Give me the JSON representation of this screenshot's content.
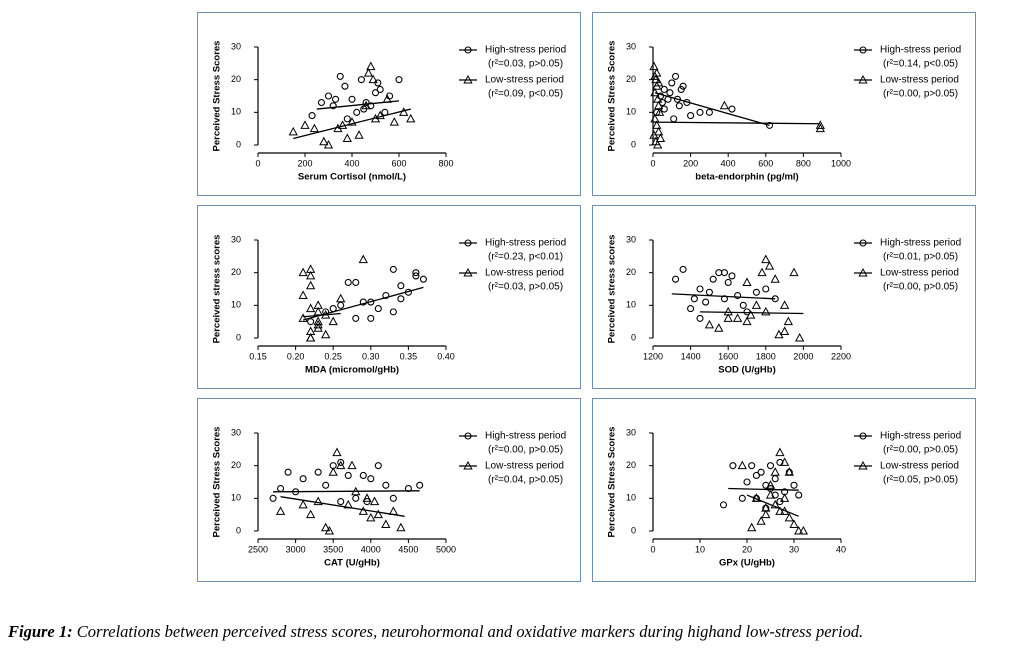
{
  "chart_data": [
    {
      "type": "scatter",
      "x_label": "Serum Cortisol (nmol/L)",
      "y_label": "Perceived Stress Scores",
      "xlim": [
        0,
        800
      ],
      "xticks": [
        0,
        200,
        400,
        600,
        800
      ],
      "ylim": [
        0,
        30
      ],
      "yticks": [
        0,
        10,
        20,
        30
      ],
      "series": [
        {
          "name": "High-stress period",
          "stat": "(r²=0.03, p>0.05)",
          "marker": "circle",
          "color": "#000000",
          "x": [
            230,
            270,
            300,
            320,
            350,
            370,
            400,
            420,
            440,
            460,
            480,
            500,
            520,
            540,
            560,
            600,
            380,
            450,
            330,
            510
          ],
          "values": [
            9,
            13,
            15,
            12,
            21,
            18,
            14,
            10,
            20,
            13,
            12,
            16,
            17,
            10,
            15,
            20,
            8,
            11,
            14,
            19
          ],
          "trend": {
            "x": [
              250,
              600
            ],
            "y": [
              11,
              13.5
            ]
          }
        },
        {
          "name": "Low-stress period",
          "stat": "(r²=0.09, p<0.05)",
          "marker": "triangle",
          "color": "#000000",
          "x": [
            150,
            200,
            240,
            280,
            300,
            340,
            360,
            380,
            400,
            430,
            460,
            480,
            490,
            500,
            520,
            550,
            580,
            620,
            650,
            470
          ],
          "values": [
            4,
            6,
            5,
            1,
            0,
            5,
            6,
            2,
            7,
            3,
            12,
            24,
            20,
            8,
            9,
            14,
            7,
            10,
            8,
            22
          ],
          "trend": {
            "x": [
              150,
              650
            ],
            "y": [
              2,
              11
            ]
          }
        }
      ]
    },
    {
      "type": "scatter",
      "x_label": "beta-endorphin (pg/ml)",
      "y_label": "Perceived Stress Scores",
      "xlim": [
        0,
        1000
      ],
      "xticks": [
        0,
        200,
        400,
        600,
        800,
        1000
      ],
      "ylim": [
        0,
        30
      ],
      "yticks": [
        0,
        10,
        20,
        30
      ],
      "series": [
        {
          "name": "High-stress period",
          "stat": "(r²=0.14, p<0.05)",
          "marker": "circle",
          "color": "#000000",
          "x": [
            20,
            40,
            60,
            80,
            100,
            120,
            140,
            160,
            180,
            60,
            90,
            110,
            130,
            200,
            250,
            300,
            420,
            620,
            50,
            150
          ],
          "values": [
            10,
            15,
            17,
            14,
            19,
            21,
            12,
            18,
            13,
            11,
            16,
            8,
            14,
            9,
            10,
            10,
            11,
            6,
            13,
            17
          ],
          "trend": {
            "x": [
              10,
              620
            ],
            "y": [
              16,
              6
            ]
          }
        },
        {
          "name": "Low-stress period",
          "stat": "(r²=0.00, p>0.05)",
          "marker": "triangle",
          "color": "#000000",
          "x": [
            5,
            10,
            15,
            20,
            25,
            30,
            10,
            20,
            30,
            40,
            15,
            25,
            5,
            35,
            380,
            890,
            890,
            10,
            20,
            30
          ],
          "values": [
            24,
            21,
            20,
            18,
            14,
            12,
            8,
            6,
            4,
            2,
            1,
            0,
            3,
            10,
            12,
            5,
            6,
            16,
            22,
            19
          ],
          "trend": {
            "x": [
              0,
              890
            ],
            "y": [
              7,
              6.5
            ]
          }
        }
      ]
    },
    {
      "type": "scatter",
      "x_label": "MDA (micromol/gHb)",
      "y_label": "Perceived stress scores",
      "xlim": [
        0.15,
        0.4
      ],
      "xticks": [
        0.15,
        {
          "value": 0.2,
          "label": "0.20"
        },
        0.25,
        {
          "value": 0.3,
          "label": "0.30"
        },
        0.35,
        {
          "value": 0.4,
          "label": "0.40"
        }
      ],
      "ylim": [
        0,
        30
      ],
      "yticks": [
        0,
        10,
        20,
        30
      ],
      "series": [
        {
          "name": "High-stress period",
          "stat": "(r²=0.23, p<0.01)",
          "marker": "circle",
          "color": "#000000",
          "x": [
            0.22,
            0.24,
            0.26,
            0.27,
            0.28,
            0.29,
            0.3,
            0.31,
            0.32,
            0.33,
            0.34,
            0.35,
            0.36,
            0.37,
            0.34,
            0.33,
            0.28,
            0.25,
            0.3,
            0.36
          ],
          "values": [
            5,
            8,
            10,
            17,
            17,
            11,
            6,
            9,
            13,
            21,
            12,
            14,
            20,
            18,
            16,
            8,
            6,
            9,
            11,
            19
          ],
          "trend": {
            "x": [
              0.21,
              0.37
            ],
            "y": [
              5.5,
              15.5
            ]
          }
        },
        {
          "name": "Low-stress period",
          "stat": "(r²=0.03, p>0.05)",
          "marker": "triangle",
          "color": "#000000",
          "x": [
            0.21,
            0.21,
            0.22,
            0.22,
            0.23,
            0.23,
            0.22,
            0.24,
            0.22,
            0.23,
            0.25,
            0.26,
            0.29,
            0.22,
            0.23,
            0.21,
            0.24,
            0.22,
            0.22,
            0.23
          ],
          "values": [
            20,
            13,
            21,
            19,
            5,
            3,
            0,
            7,
            2,
            8,
            5,
            12,
            24,
            16,
            10,
            6,
            1,
            9,
            0,
            4
          ],
          "trend": {
            "x": [
              0.21,
              0.26
            ],
            "y": [
              6.5,
              7.5
            ]
          }
        }
      ]
    },
    {
      "type": "scatter",
      "x_label": "SOD (U/gHb)",
      "y_label": "Perceived stress scores",
      "xlim": [
        1200,
        2200
      ],
      "xticks": [
        1200,
        1400,
        1600,
        1800,
        2000,
        2200
      ],
      "ylim": [
        0,
        30
      ],
      "yticks": [
        0,
        10,
        20,
        30
      ],
      "series": [
        {
          "name": "High-stress period",
          "stat": "(r²=0.01, p>0.05)",
          "marker": "circle",
          "color": "#000000",
          "x": [
            1320,
            1360,
            1400,
            1420,
            1450,
            1480,
            1500,
            1520,
            1550,
            1580,
            1600,
            1620,
            1650,
            1680,
            1700,
            1750,
            1800,
            1850,
            1450,
            1580
          ],
          "values": [
            18,
            21,
            9,
            12,
            15,
            11,
            14,
            18,
            20,
            12,
            17,
            19,
            13,
            10,
            8,
            14,
            15,
            12,
            6,
            20
          ],
          "trend": {
            "x": [
              1300,
              1850
            ],
            "y": [
              13.5,
              12
            ]
          }
        },
        {
          "name": "Low-stress period",
          "stat": "(r²=0.00, p>0.05)",
          "marker": "triangle",
          "color": "#000000",
          "x": [
            1500,
            1550,
            1600,
            1650,
            1700,
            1720,
            1750,
            1780,
            1800,
            1820,
            1850,
            1870,
            1900,
            1920,
            1950,
            1980,
            1700,
            1800,
            1900,
            1600
          ],
          "values": [
            4,
            3,
            8,
            6,
            5,
            7,
            10,
            20,
            24,
            22,
            18,
            1,
            10,
            5,
            20,
            0,
            17,
            8,
            2,
            6
          ],
          "trend": {
            "x": [
              1450,
              2000
            ],
            "y": [
              8,
              7.5
            ]
          }
        }
      ]
    },
    {
      "type": "scatter",
      "x_label": "CAT (U/gHb)",
      "y_label": "Perceived Stress Scores",
      "xlim": [
        2500,
        5000
      ],
      "xticks": [
        2500,
        3000,
        3500,
        4000,
        4500,
        5000
      ],
      "ylim": [
        0,
        30
      ],
      "yticks": [
        0,
        10,
        20,
        30
      ],
      "series": [
        {
          "name": "High-stress period",
          "stat": "(r²=0.00, p>0.05)",
          "marker": "circle",
          "color": "#000000",
          "x": [
            2700,
            2800,
            2900,
            3000,
            3100,
            3300,
            3400,
            3500,
            3600,
            3700,
            3800,
            3900,
            4000,
            4100,
            4200,
            4300,
            4500,
            4650,
            3600,
            3950
          ],
          "values": [
            10,
            13,
            18,
            12,
            16,
            18,
            14,
            20,
            21,
            17,
            10,
            17,
            16,
            20,
            14,
            10,
            13,
            14,
            9,
            9
          ],
          "trend": {
            "x": [
              2700,
              4650
            ],
            "y": [
              12,
              12.3
            ]
          }
        },
        {
          "name": "Low-stress period",
          "stat": "(r²=0.04, p>0.05)",
          "marker": "triangle",
          "color": "#000000",
          "x": [
            2800,
            3100,
            3200,
            3300,
            3400,
            3500,
            3550,
            3600,
            3700,
            3800,
            3900,
            3950,
            4000,
            4050,
            4100,
            4200,
            4300,
            4400,
            3750,
            3450
          ],
          "values": [
            6,
            8,
            5,
            9,
            1,
            18,
            24,
            20,
            8,
            12,
            6,
            10,
            4,
            9,
            5,
            2,
            6,
            1,
            20,
            0
          ],
          "trend": {
            "x": [
              2800,
              4450
            ],
            "y": [
              10.5,
              4.5
            ]
          }
        }
      ]
    },
    {
      "type": "scatter",
      "x_label": "GPx (U/gHb)",
      "y_label": "Perceived Stress Scores",
      "xlim": [
        0,
        40
      ],
      "xticks": [
        0,
        10,
        20,
        30,
        40
      ],
      "ylim": [
        0,
        30
      ],
      "yticks": [
        0,
        10,
        20,
        30
      ],
      "series": [
        {
          "name": "High-stress period",
          "stat": "(r²=0.00, p>0.05)",
          "marker": "circle",
          "color": "#000000",
          "x": [
            15,
            17,
            19,
            20,
            21,
            22,
            22,
            23,
            24,
            25,
            25,
            26,
            26,
            27,
            27,
            28,
            29,
            30,
            31,
            24
          ],
          "values": [
            8,
            20,
            10,
            15,
            20,
            17,
            10,
            18,
            14,
            13,
            20,
            16,
            11,
            21,
            9,
            12,
            18,
            14,
            11,
            7
          ],
          "trend": {
            "x": [
              16,
              31
            ],
            "y": [
              13,
              12.5
            ]
          }
        },
        {
          "name": "Low-stress period",
          "stat": "(r²=0.05, p>0.05)",
          "marker": "triangle",
          "color": "#000000",
          "x": [
            19,
            21,
            22,
            23,
            24,
            24,
            25,
            26,
            27,
            27,
            28,
            28,
            29,
            29,
            30,
            31,
            32,
            26,
            25,
            28
          ],
          "values": [
            20,
            1,
            10,
            3,
            5,
            7,
            14,
            8,
            24,
            6,
            21,
            10,
            18,
            4,
            2,
            0,
            0,
            18,
            11,
            6
          ],
          "trend": {
            "x": [
              20,
              31
            ],
            "y": [
              11,
              4.5
            ]
          }
        }
      ]
    }
  ],
  "caption": {
    "label": "Figure 1:",
    "text": "Correlations between perceived stress scores, neurohormonal and oxidative markers during highand low-stress period."
  }
}
